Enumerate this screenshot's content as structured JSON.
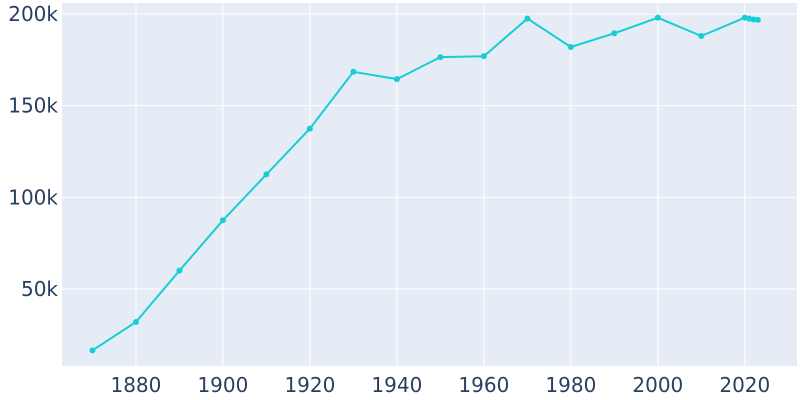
{
  "chart_data": {
    "type": "line",
    "title": "",
    "xlabel": "",
    "ylabel": "",
    "xlim": [
      1863,
      2032
    ],
    "ylim": [
      8000,
      206000
    ],
    "grid": true,
    "legend": "none",
    "x_ticks": [
      {
        "value": 1880,
        "label": "1880"
      },
      {
        "value": 1900,
        "label": "1900"
      },
      {
        "value": 1920,
        "label": "1920"
      },
      {
        "value": 1940,
        "label": "1940"
      },
      {
        "value": 1960,
        "label": "1960"
      },
      {
        "value": 1980,
        "label": "1980"
      },
      {
        "value": 2000,
        "label": "2000"
      },
      {
        "value": 2020,
        "label": "2020"
      }
    ],
    "y_ticks": [
      {
        "value": 50000,
        "label": "50k"
      },
      {
        "value": 100000,
        "label": "100k"
      },
      {
        "value": 150000,
        "label": "150k"
      },
      {
        "value": 200000,
        "label": "200k"
      }
    ],
    "series": [
      {
        "x": [
          1870,
          1880,
          1890,
          1900,
          1910,
          1920,
          1930,
          1940,
          1950,
          1960,
          1970,
          1980,
          1990,
          2000,
          2010,
          2020,
          2021,
          2022,
          2023
        ],
        "y": [
          16500,
          32000,
          60000,
          87500,
          112500,
          137500,
          168500,
          164500,
          176500,
          177000,
          197500,
          182000,
          189500,
          198000,
          188000,
          198000,
          197500,
          197000,
          196800
        ]
      }
    ],
    "colors": {
      "plot_bg": "#e5ecf6",
      "grid": "#ffffff",
      "line": "#17cdd6",
      "text": "#2a3f5f"
    }
  }
}
